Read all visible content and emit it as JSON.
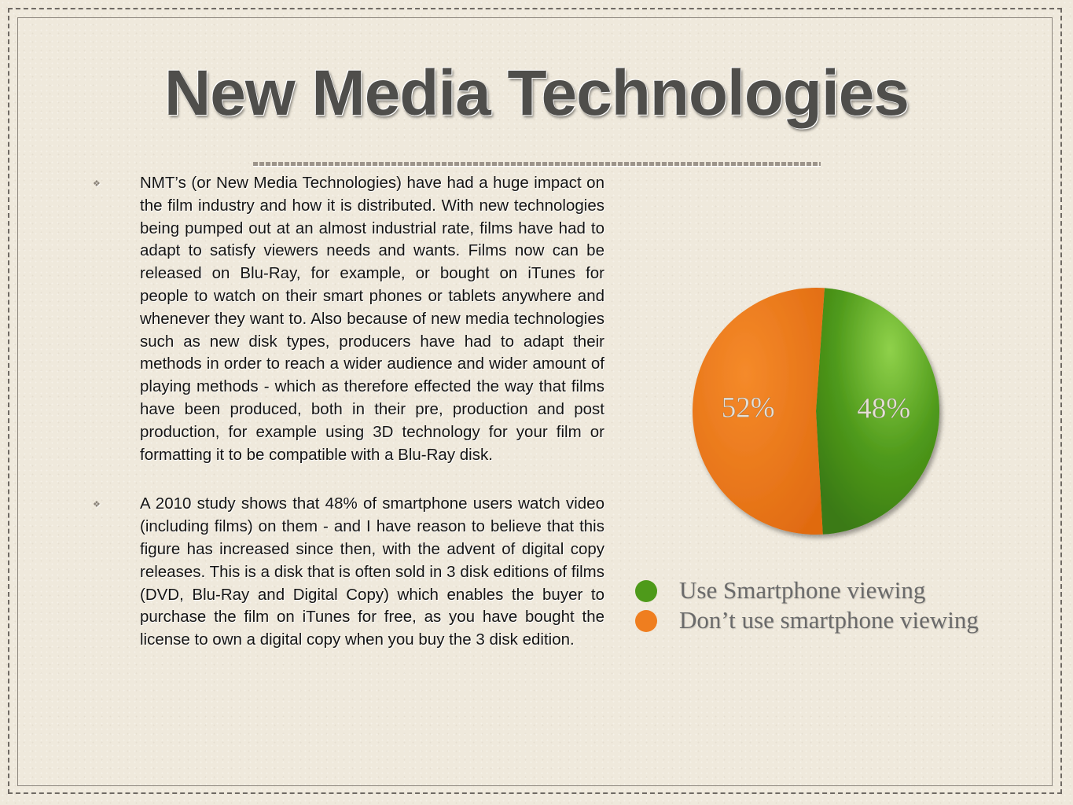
{
  "slide": {
    "title": "New Media Technologies",
    "paragraphs": [
      "NMT’s (or New Media Technologies) have had a huge impact on the film industry and how it is distributed. With new technologies being pumped out at an almost industrial rate, films have had to adapt to satisfy viewers needs and wants. Films now can be released on Blu-Ray, for example, or bought on iTunes for people to watch on their smart phones or tablets anywhere and whenever they want to. Also because of new media technologies such as new disk types, producers have had to adapt their methods in order to reach a wider audience and wider amount of playing methods - which as therefore effected the way that films have been produced, both in their pre, production and post production, for example using 3D technology for your film or formatting it to be compatible with a Blu-Ray disk.",
      "A 2010 study shows that 48% of smartphone users watch video (including films) on them - and I have reason to believe that this figure has increased since then, with the advent of digital copy releases. This is a disk that is often sold in 3 disk editions of films (DVD, Blu-Ray and Digital Copy) which enables the buyer to purchase the film on iTunes for free, as you have bought the license to own a digital copy when you buy the 3 disk edition."
    ],
    "bullet_icon": "bullet-icon"
  },
  "chart_data": {
    "type": "pie",
    "title": "",
    "legend_position": "bottom",
    "slices": [
      {
        "label": "Use Smartphone viewing",
        "value": 48,
        "data_label": "48%",
        "color": "#4e9a1a"
      },
      {
        "label": "Don’t use smartphone viewing",
        "value": 52,
        "data_label": "52%",
        "color": "#ef7e1f"
      }
    ]
  }
}
